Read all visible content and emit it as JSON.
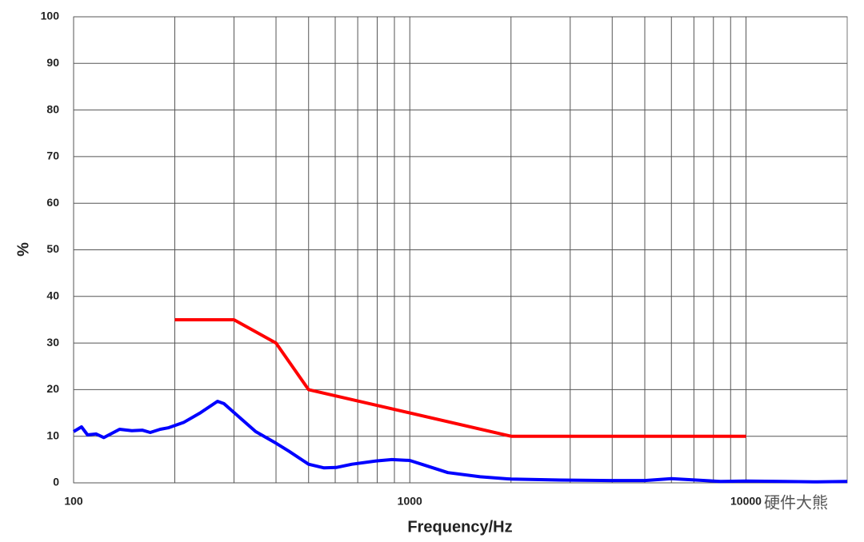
{
  "chart_data": {
    "type": "line",
    "xlabel": "Frequency/Hz",
    "ylabel": "%",
    "watermark": "硬件大熊",
    "xscale": "log",
    "xlim": [
      100,
      20000
    ],
    "xticks": [
      100,
      1000,
      10000
    ],
    "xminorticks": [
      200,
      300,
      400,
      500,
      600,
      700,
      800,
      900,
      2000,
      3000,
      4000,
      5000,
      6000,
      7000,
      8000,
      9000
    ],
    "ylim": [
      0,
      100
    ],
    "yticks": [
      0,
      10,
      20,
      30,
      40,
      50,
      60,
      70,
      80,
      90,
      100
    ],
    "grid": true,
    "series": [
      {
        "color": "#ff0000",
        "x": [
          200,
          300,
          400,
          500,
          2000,
          10000
        ],
        "values": [
          35,
          35,
          30,
          20,
          10,
          10
        ]
      },
      {
        "color": "#0000ff",
        "x": [
          100,
          105.6,
          110,
          116.6,
          123,
          137,
          149,
          160,
          169,
          181,
          191,
          213,
          238,
          268,
          280,
          312,
          348,
          400,
          437,
          500,
          556,
          604,
          673,
          794,
          885,
          1000,
          1105,
          1298,
          1619,
          2000,
          2800,
          4000,
          5000,
          6000,
          7100,
          8400,
          10000,
          13000,
          16300,
          20000
        ],
        "values": [
          11,
          12,
          10.3,
          10.5,
          9.7,
          11.5,
          11.2,
          11.3,
          10.8,
          11.5,
          11.8,
          13,
          15,
          17.5,
          17,
          14,
          11,
          8.5,
          6.8,
          4,
          3.2,
          3.3,
          4,
          4.7,
          5,
          4.8,
          3.8,
          2.2,
          1.3,
          0.8,
          0.6,
          0.5,
          0.5,
          0.9,
          0.6,
          0.3,
          0.4,
          0.3,
          0.2,
          0.3
        ]
      }
    ]
  }
}
